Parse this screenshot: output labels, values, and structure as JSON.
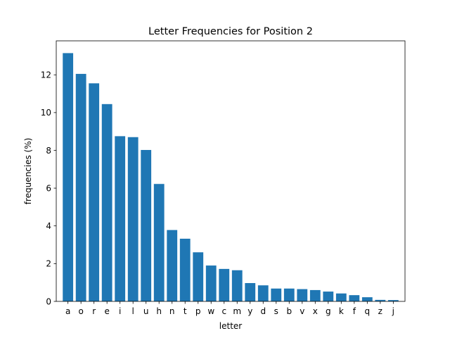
{
  "chart_data": {
    "type": "bar",
    "title": "Letter Frequencies for Position 2",
    "xlabel": "letter",
    "ylabel": "frequencies (%)",
    "categories": [
      "a",
      "o",
      "r",
      "e",
      "i",
      "l",
      "u",
      "h",
      "n",
      "t",
      "p",
      "w",
      "c",
      "m",
      "y",
      "d",
      "s",
      "b",
      "v",
      "x",
      "g",
      "k",
      "f",
      "q",
      "z",
      "j"
    ],
    "values": [
      13.15,
      12.05,
      11.55,
      10.45,
      8.75,
      8.7,
      8.02,
      6.22,
      3.78,
      3.32,
      2.6,
      1.9,
      1.72,
      1.65,
      0.97,
      0.85,
      0.68,
      0.68,
      0.65,
      0.6,
      0.52,
      0.42,
      0.33,
      0.22,
      0.08,
      0.07
    ],
    "ylim": [
      0,
      13.8
    ],
    "yticks": [
      0,
      2,
      4,
      6,
      8,
      10,
      12
    ],
    "bar_color": "#1f77b4",
    "grid": false,
    "legend": "none"
  }
}
